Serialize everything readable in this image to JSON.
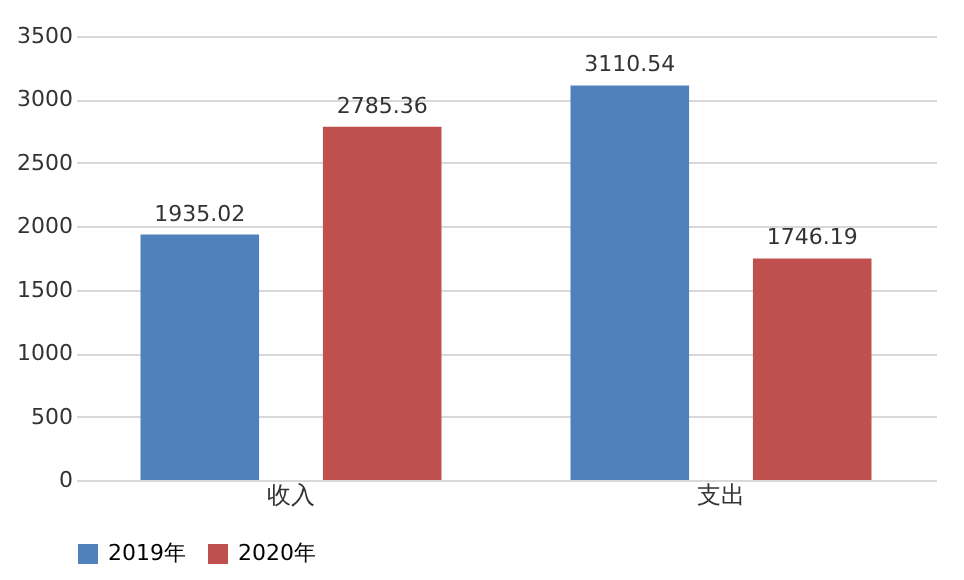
{
  "chart_data": {
    "type": "bar",
    "categories": [
      "收入",
      "支出"
    ],
    "series": [
      {
        "name": "2019年",
        "color": "#4f81bd",
        "values": [
          1935.02,
          3110.54
        ]
      },
      {
        "name": "2020年",
        "color": "#c0504d",
        "values": [
          2785.36,
          1746.19
        ]
      }
    ],
    "ylim": [
      0,
      3500
    ],
    "yticks": [
      0,
      500,
      1000,
      1500,
      2000,
      2500,
      3000,
      3500
    ],
    "grid": "y",
    "legend": "bottom",
    "data_labels": true
  }
}
